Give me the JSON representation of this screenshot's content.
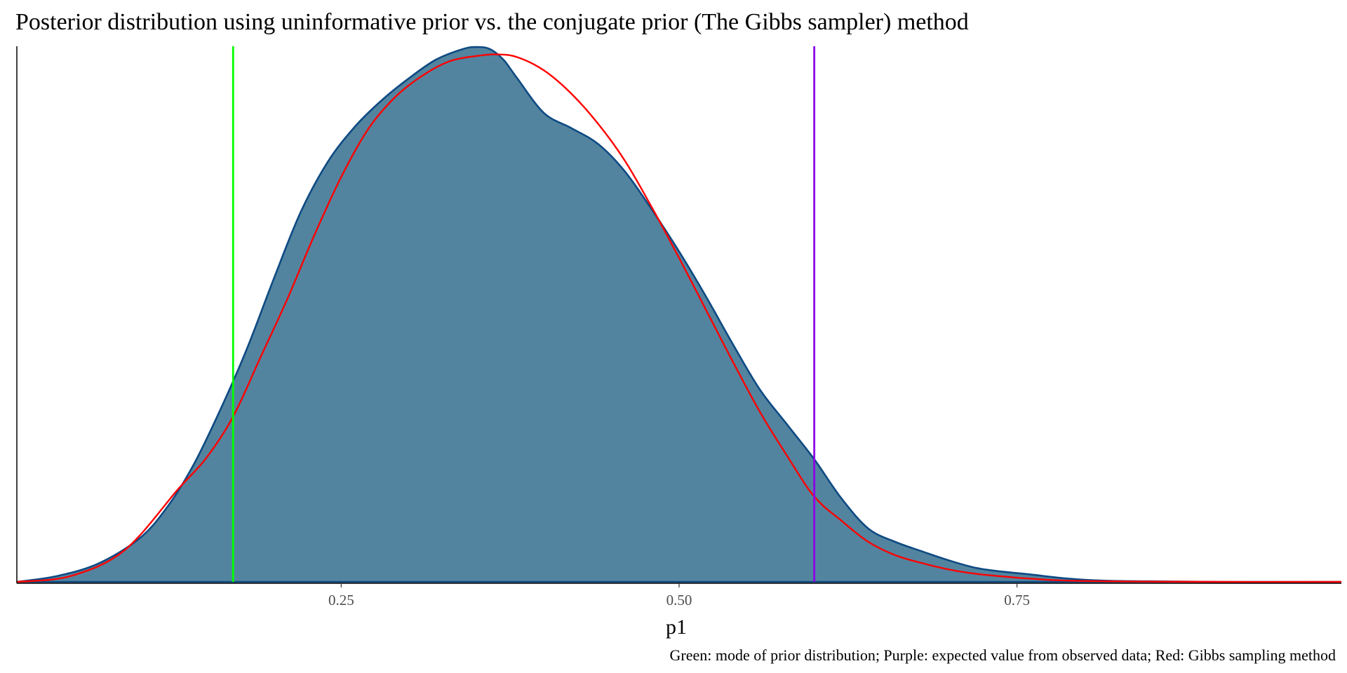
{
  "chart_data": {
    "type": "area",
    "title": "Posterior distribution using uninformative prior vs. the conjugate prior (The Gibbs sampler) method",
    "xlabel": "p1",
    "ylabel": "",
    "caption": "Green: mode of prior distribution; Purple: expected value from observed data; Red: Gibbs sampling method",
    "xlim": [
      0.01,
      0.99
    ],
    "ylim": [
      0,
      1.0
    ],
    "x_ticks": [
      {
        "value": 0.25,
        "label": "0.25"
      },
      {
        "value": 0.5,
        "label": "0.50"
      },
      {
        "value": 0.75,
        "label": "0.75"
      }
    ],
    "grid": false,
    "y_axis_labels_shown": false,
    "colors": {
      "density_fill": "#53849f",
      "density_line": "#0e4a83",
      "gibbs_curve": "#ff0000",
      "prior_mode_line": "#00ff00",
      "observed_mean_line": "#8a00e6"
    },
    "series": [
      {
        "kind": "density_area",
        "x": [
          0.01,
          0.04,
          0.07,
          0.1,
          0.12,
          0.14,
          0.16,
          0.18,
          0.2,
          0.22,
          0.24,
          0.26,
          0.28,
          0.3,
          0.32,
          0.34,
          0.35,
          0.36,
          0.37,
          0.38,
          0.4,
          0.42,
          0.44,
          0.46,
          0.48,
          0.5,
          0.52,
          0.54,
          0.56,
          0.58,
          0.6,
          0.62,
          0.64,
          0.66,
          0.68,
          0.7,
          0.72,
          0.74,
          0.76,
          0.78,
          0.8,
          0.82,
          0.85,
          0.9,
          0.99
        ],
        "y": [
          0.0,
          0.011,
          0.034,
          0.08,
          0.136,
          0.216,
          0.32,
          0.436,
          0.568,
          0.694,
          0.788,
          0.854,
          0.904,
          0.945,
          0.98,
          1.0,
          1.004,
          1.0,
          0.98,
          0.946,
          0.88,
          0.852,
          0.822,
          0.77,
          0.698,
          0.62,
          0.535,
          0.445,
          0.36,
          0.295,
          0.23,
          0.157,
          0.1,
          0.075,
          0.057,
          0.04,
          0.026,
          0.019,
          0.014,
          0.008,
          0.004,
          0.002,
          0.001,
          0.0,
          0.0
        ]
      },
      {
        "kind": "gibbs_curve",
        "x": [
          0.01,
          0.05,
          0.09,
          0.13,
          0.15,
          0.17,
          0.19,
          0.21,
          0.23,
          0.25,
          0.27,
          0.29,
          0.31,
          0.33,
          0.35,
          0.365,
          0.38,
          0.4,
          0.42,
          0.44,
          0.46,
          0.48,
          0.5,
          0.52,
          0.54,
          0.56,
          0.58,
          0.6,
          0.62,
          0.64,
          0.66,
          0.68,
          0.7,
          0.72,
          0.74,
          0.76,
          0.78,
          0.8,
          0.84,
          0.9,
          0.99
        ],
        "y": [
          0.0,
          0.011,
          0.06,
          0.176,
          0.232,
          0.31,
          0.42,
          0.53,
          0.65,
          0.76,
          0.85,
          0.91,
          0.95,
          0.977,
          0.987,
          0.99,
          0.985,
          0.96,
          0.917,
          0.86,
          0.79,
          0.702,
          0.608,
          0.51,
          0.412,
          0.318,
          0.236,
          0.16,
          0.115,
          0.075,
          0.05,
          0.035,
          0.023,
          0.015,
          0.01,
          0.006,
          0.003,
          0.0016,
          0.0005,
          0.0,
          0.0
        ]
      },
      {
        "kind": "vline",
        "name": "prior_mode",
        "x": 0.17
      },
      {
        "kind": "vline",
        "name": "observed_mean",
        "x": 0.6
      }
    ]
  }
}
